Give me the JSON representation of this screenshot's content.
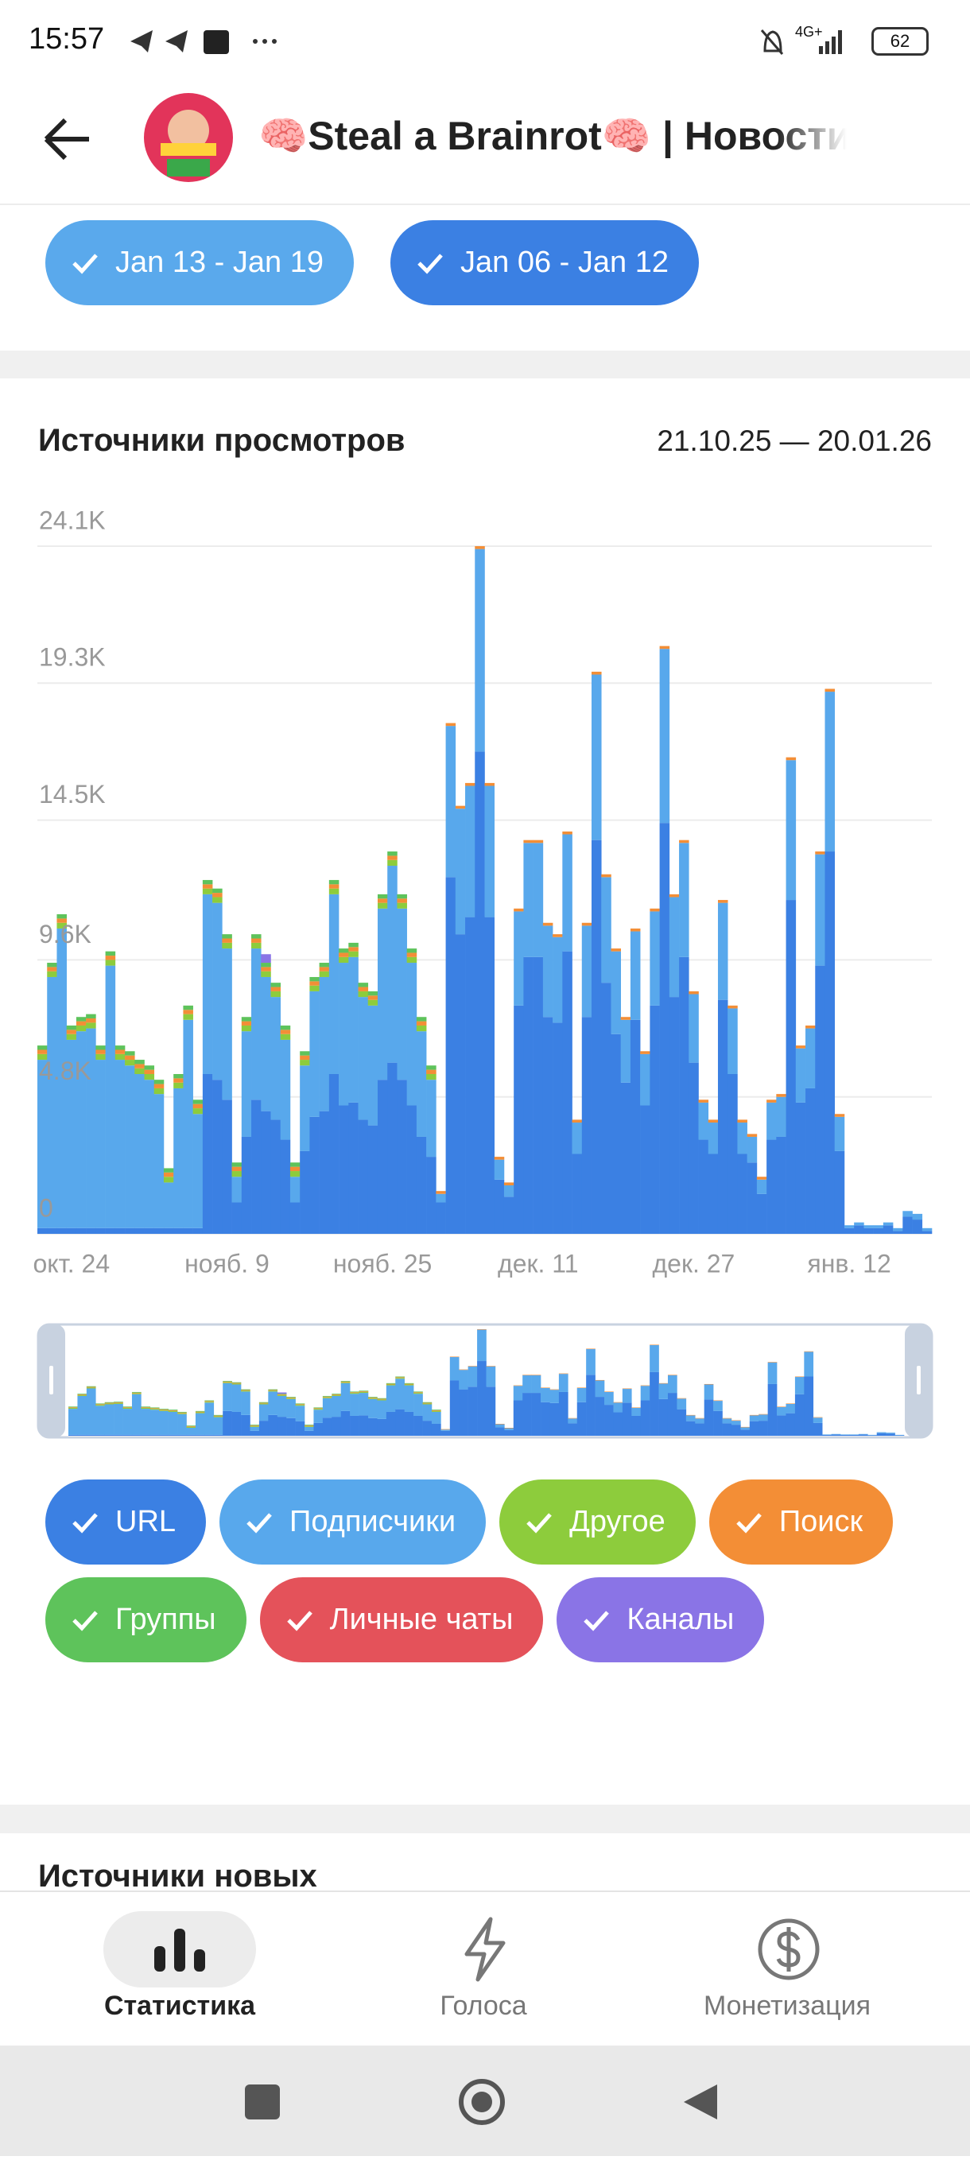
{
  "status_bar": {
    "time": "15:57",
    "network": "4G+",
    "battery": "62"
  },
  "header": {
    "title": "🧠Steal a Brainrot🧠 | Новости"
  },
  "week_chips": [
    "Jan 13 - Jan 19",
    "Jan 06 - Jan 12"
  ],
  "chart_data": {
    "type": "stacked_bar",
    "title": "Источники просмотров",
    "subtitle": "21.10.25 — 20.01.26",
    "categories": [
      null,
      null,
      null,
      "окт. 24",
      null,
      null,
      null,
      null,
      null,
      null,
      null,
      null,
      null,
      null,
      null,
      null,
      null,
      null,
      null,
      "нояб. 9",
      null,
      null,
      null,
      null,
      null,
      null,
      null,
      null,
      null,
      null,
      null,
      null,
      null,
      null,
      null,
      "нояб. 25",
      null,
      null,
      null,
      null,
      null,
      null,
      null,
      null,
      null,
      null,
      null,
      null,
      null,
      null,
      null,
      "дек. 11",
      null,
      null,
      null,
      null,
      null,
      null,
      null,
      null,
      null,
      null,
      null,
      null,
      null,
      null,
      null,
      "дек. 27",
      null,
      null,
      null,
      null,
      null,
      null,
      null,
      null,
      null,
      null,
      null,
      null,
      null,
      null,
      null,
      "янв. 12",
      null,
      null,
      null,
      null,
      null,
      null,
      null,
      null
    ],
    "ylim": [
      0,
      24100
    ],
    "yticks": [
      0,
      {
        "value": 4800,
        "label": "4.8K"
      },
      {
        "value": 9600,
        "label": "9.6K"
      },
      {
        "value": 14500,
        "label": "14.5K"
      },
      {
        "value": 19300,
        "label": "19.3K"
      },
      {
        "value": 24100,
        "label": "24.1K"
      }
    ],
    "grid": true,
    "series": [
      {
        "name": "URL",
        "color": "#3b80e3",
        "values": [
          200,
          200,
          200,
          200,
          200,
          200,
          200,
          200,
          200,
          200,
          200,
          200,
          200,
          200,
          200,
          200,
          200,
          5600,
          5400,
          4700,
          1100,
          3400,
          4700,
          4300,
          4000,
          3300,
          1100,
          2900,
          4100,
          4300,
          5600,
          4500,
          4600,
          4000,
          3800,
          5400,
          6000,
          5400,
          4500,
          3400,
          2700,
          1100,
          12500,
          10500,
          11100,
          16900,
          11100,
          1900,
          1300,
          8000,
          9700,
          9700,
          7600,
          7400,
          9900,
          2800,
          7600,
          13800,
          8800,
          7000,
          5300,
          7500,
          4500,
          8000,
          14400,
          8300,
          9700,
          6000,
          3300,
          2800,
          8200,
          5600,
          2800,
          2500,
          1400,
          3300,
          3400,
          11700,
          4600,
          5100,
          9400,
          13400,
          2900,
          200,
          300,
          200,
          200,
          300,
          100,
          600,
          500,
          100
        ]
      },
      {
        "name": "Подписчики",
        "color": "#58a8ec",
        "values": [
          5900,
          8800,
          10500,
          6600,
          6900,
          7000,
          5900,
          9200,
          5900,
          5700,
          5400,
          5200,
          4700,
          1600,
          4900,
          7300,
          4000,
          6300,
          6200,
          5300,
          900,
          3700,
          5300,
          4700,
          4300,
          3500,
          900,
          3000,
          4400,
          4700,
          6300,
          5000,
          5100,
          4300,
          4200,
          6000,
          6900,
          6000,
          5000,
          3700,
          2700,
          300,
          5300,
          4400,
          4600,
          7100,
          4600,
          700,
          400,
          3300,
          4000,
          4000,
          3200,
          3000,
          4100,
          1100,
          3200,
          5800,
          3700,
          2900,
          2200,
          3100,
          1800,
          3300,
          6100,
          3500,
          4000,
          2400,
          1300,
          1100,
          3400,
          2300,
          1100,
          900,
          500,
          1300,
          1400,
          4900,
          1900,
          2100,
          3900,
          5600,
          1200,
          100,
          100,
          100,
          100,
          100,
          100,
          200,
          200,
          100
        ]
      },
      {
        "name": "Другое",
        "color": "#8dcc3c",
        "values": [
          200,
          200,
          200,
          200,
          200,
          200,
          200,
          200,
          200,
          200,
          200,
          200,
          200,
          200,
          200,
          200,
          200,
          200,
          200,
          200,
          200,
          200,
          200,
          200,
          200,
          200,
          200,
          200,
          200,
          200,
          200,
          200,
          200,
          200,
          200,
          200,
          200,
          200,
          200,
          200,
          200,
          0,
          0,
          0,
          0,
          0,
          0,
          0,
          0,
          0,
          0,
          0,
          0,
          0,
          0,
          0,
          0,
          0,
          0,
          0,
          0,
          0,
          0,
          0,
          0,
          0,
          0,
          0,
          0,
          0,
          0,
          0,
          0,
          0,
          0,
          0,
          0,
          0,
          0,
          0,
          0,
          0,
          0,
          0,
          0,
          0,
          0,
          0,
          0,
          0,
          0,
          0
        ]
      },
      {
        "name": "Поиск",
        "color": "#f38e36",
        "values": [
          150,
          150,
          150,
          150,
          150,
          150,
          150,
          150,
          150,
          150,
          150,
          150,
          150,
          150,
          150,
          150,
          150,
          150,
          150,
          150,
          150,
          150,
          150,
          150,
          150,
          150,
          150,
          150,
          150,
          150,
          150,
          150,
          150,
          150,
          150,
          150,
          150,
          150,
          150,
          150,
          150,
          100,
          100,
          100,
          100,
          100,
          100,
          100,
          100,
          100,
          100,
          100,
          100,
          100,
          100,
          100,
          100,
          100,
          100,
          100,
          100,
          100,
          100,
          100,
          100,
          100,
          100,
          100,
          100,
          100,
          100,
          100,
          100,
          100,
          100,
          100,
          100,
          100,
          100,
          100,
          100,
          100,
          100,
          0,
          0,
          0,
          0,
          0,
          0,
          0,
          0,
          0
        ]
      },
      {
        "name": "Группы",
        "color": "#5ec35b",
        "values": [
          150,
          150,
          150,
          150,
          150,
          150,
          150,
          150,
          150,
          150,
          150,
          150,
          150,
          150,
          150,
          150,
          150,
          150,
          150,
          150,
          150,
          150,
          150,
          150,
          150,
          150,
          150,
          150,
          150,
          150,
          150,
          150,
          150,
          150,
          150,
          150,
          150,
          150,
          150,
          150,
          150,
          0,
          0,
          0,
          0,
          0,
          0,
          0,
          0,
          0,
          0,
          0,
          0,
          0,
          0,
          0,
          0,
          0,
          0,
          0,
          0,
          0,
          0,
          0,
          0,
          0,
          0,
          0,
          0,
          0,
          0,
          0,
          0,
          0,
          0,
          0,
          0,
          0,
          0,
          0,
          0,
          0,
          0,
          0,
          0,
          0,
          0,
          0,
          0,
          0,
          0,
          0
        ]
      },
      {
        "name": "Личные чаты",
        "color": "#e4525a",
        "values": [
          0,
          0,
          0,
          0,
          0,
          0,
          0,
          0,
          0,
          0,
          0,
          0,
          0,
          0,
          0,
          0,
          0,
          0,
          0,
          0,
          0,
          0,
          0,
          0,
          0,
          0,
          0,
          0,
          0,
          0,
          0,
          0,
          0,
          0,
          0,
          0,
          0,
          0,
          0,
          0,
          0,
          0,
          0,
          0,
          0,
          0,
          0,
          0,
          0,
          0,
          0,
          0,
          0,
          0,
          0,
          0,
          0,
          0,
          0,
          0,
          0,
          0,
          0,
          0,
          0,
          0,
          0,
          0,
          0,
          0,
          0,
          0,
          0,
          0,
          0,
          0,
          0,
          0,
          0,
          0,
          0,
          0,
          0,
          0,
          0,
          0,
          0,
          0,
          0,
          0,
          0,
          0
        ]
      },
      {
        "name": "Каналы",
        "color": "#8a74e6",
        "values": [
          0,
          0,
          0,
          0,
          0,
          0,
          0,
          0,
          0,
          0,
          0,
          0,
          0,
          0,
          0,
          0,
          0,
          0,
          0,
          0,
          0,
          0,
          0,
          300,
          0,
          0,
          0,
          0,
          0,
          0,
          0,
          0,
          0,
          0,
          0,
          0,
          0,
          0,
          0,
          0,
          0,
          0,
          0,
          0,
          0,
          0,
          0,
          0,
          0,
          0,
          0,
          0,
          0,
          0,
          0,
          0,
          0,
          0,
          0,
          0,
          0,
          0,
          0,
          0,
          0,
          0,
          0,
          0,
          0,
          0,
          0,
          0,
          0,
          0,
          0,
          0,
          0,
          0,
          0,
          0,
          0,
          0,
          0,
          0,
          0,
          0,
          0,
          0,
          0,
          0,
          0,
          0
        ]
      }
    ]
  },
  "next_section": {
    "title": "Источники новых"
  },
  "bottom_nav": [
    "Статистика",
    "Голоса",
    "Монетизация"
  ]
}
